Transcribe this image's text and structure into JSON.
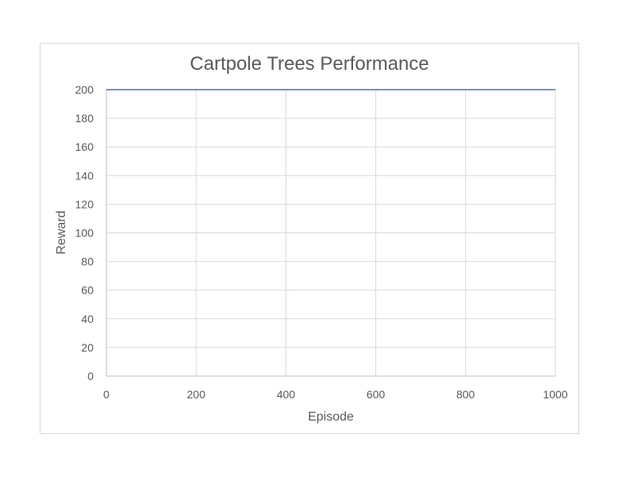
{
  "chart_data": {
    "type": "line",
    "title": "Cartpole Trees Performance",
    "xlabel": "Episode",
    "ylabel": "Reward",
    "xlim": [
      0,
      1000
    ],
    "ylim": [
      0,
      200
    ],
    "x_ticks": [
      0,
      200,
      400,
      600,
      800,
      1000
    ],
    "y_ticks": [
      0,
      20,
      40,
      60,
      80,
      100,
      120,
      140,
      160,
      180,
      200
    ],
    "grid": true,
    "legend": "none",
    "series": [
      {
        "color": "#4472c4",
        "x": [
          0,
          1000
        ],
        "y": [
          200,
          200
        ]
      }
    ],
    "colors": {
      "grid": "#d9d9d9",
      "axis": "#bfbfbf",
      "text": "#595959"
    }
  }
}
